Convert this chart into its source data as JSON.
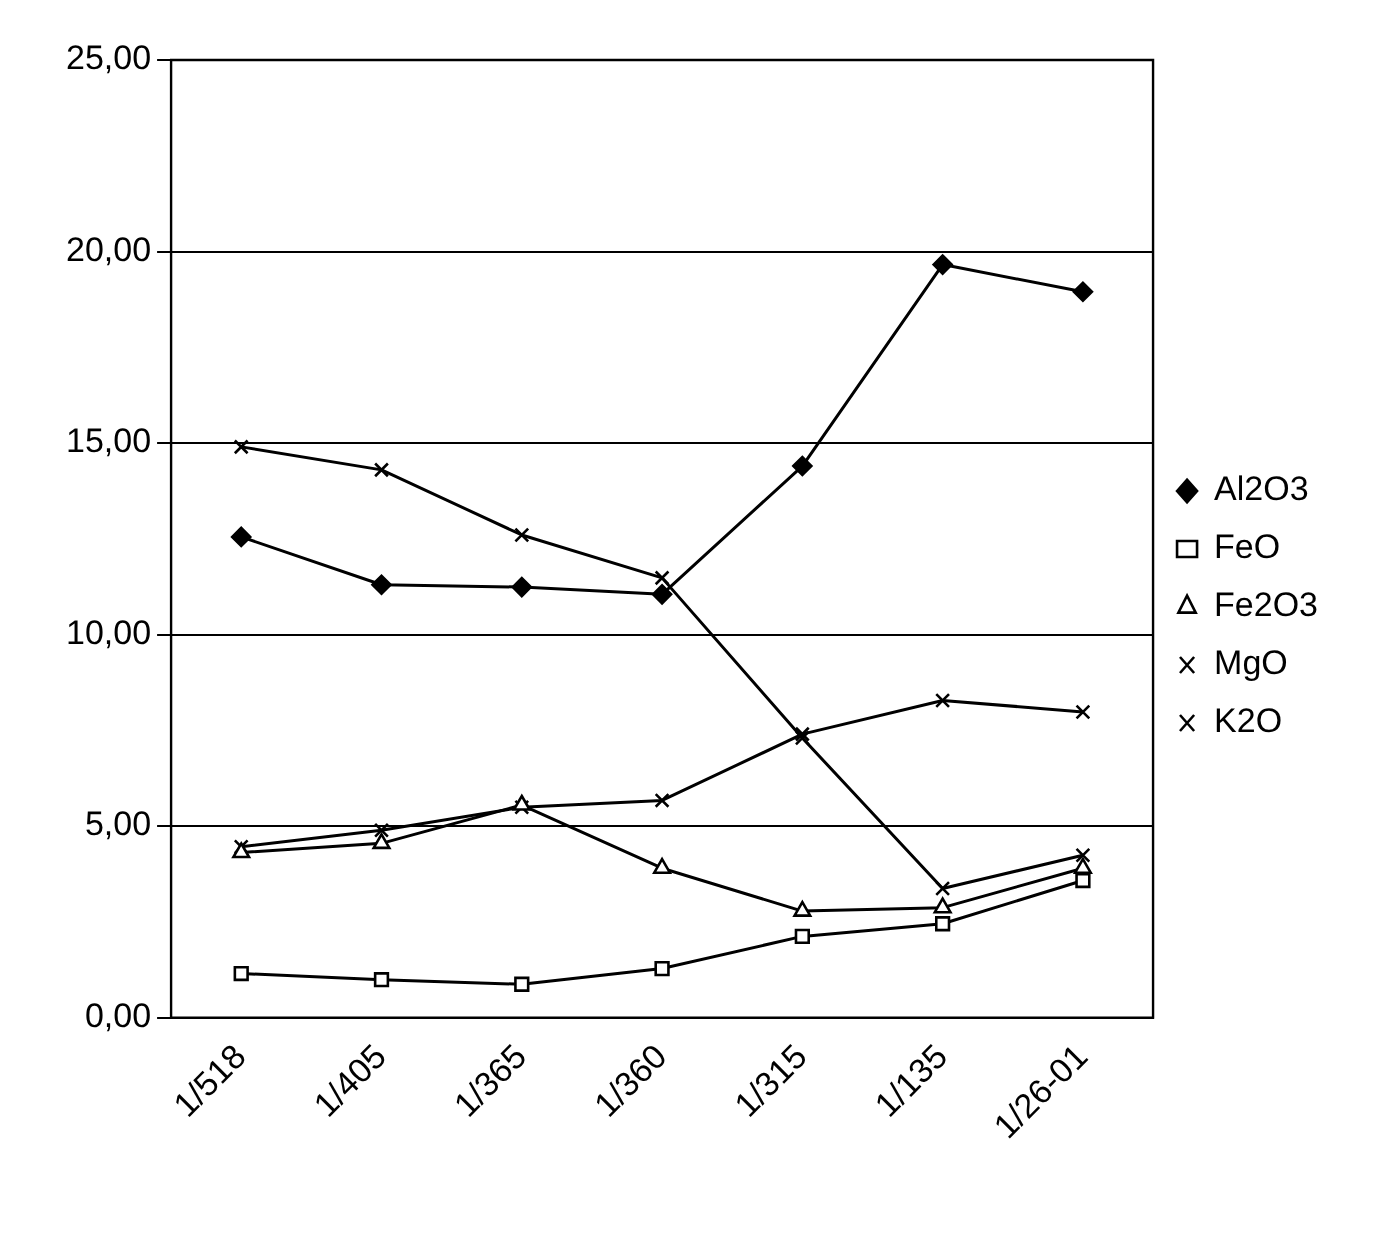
{
  "chart_data": {
    "type": "line",
    "categories": [
      "1/518",
      "1/405",
      "1/365",
      "1/360",
      "1/315",
      "1/135",
      "1/26-01"
    ],
    "series": [
      {
        "name": "Al2O3",
        "color": "#000000",
        "marker": "diamond",
        "values": [
          12.55,
          11.3,
          11.24,
          11.05,
          14.4,
          19.66,
          18.95
        ]
      },
      {
        "name": "FeO",
        "color": "#000000",
        "marker": "square",
        "values": [
          1.15,
          0.99,
          0.87,
          1.28,
          2.12,
          2.45,
          3.58
        ]
      },
      {
        "name": "Fe2O3",
        "color": "#000000",
        "marker": "triangle",
        "values": [
          4.31,
          4.55,
          5.55,
          3.9,
          2.78,
          2.87,
          3.9
        ]
      },
      {
        "name": "MgO",
        "color": "#000000",
        "marker": "cross",
        "values": [
          14.9,
          14.3,
          12.6,
          11.48,
          7.3,
          3.37,
          4.24
        ]
      },
      {
        "name": "K2O",
        "color": "#000000",
        "marker": "cross",
        "values": [
          4.46,
          4.89,
          5.49,
          5.67,
          7.4,
          8.28,
          7.98
        ]
      }
    ],
    "ylim": [
      0,
      25
    ],
    "yticks": [
      {
        "value": 0,
        "label": "0,00"
      },
      {
        "value": 5,
        "label": "5,00"
      },
      {
        "value": 10,
        "label": "10,00"
      },
      {
        "value": 15,
        "label": "15,00"
      },
      {
        "value": 20,
        "label": "20,00"
      },
      {
        "value": 25,
        "label": "25,00"
      }
    ],
    "grid": "y",
    "legend": "right",
    "line_style": "solid"
  }
}
